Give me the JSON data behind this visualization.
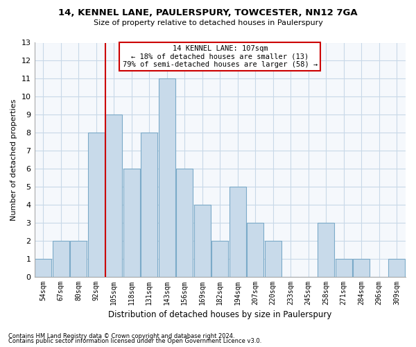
{
  "title_line1": "14, KENNEL LANE, PAULERSPURY, TOWCESTER, NN12 7GA",
  "title_line2": "Size of property relative to detached houses in Paulerspury",
  "xlabel": "Distribution of detached houses by size in Paulerspury",
  "ylabel": "Number of detached properties",
  "footnote1": "Contains HM Land Registry data © Crown copyright and database right 2024.",
  "footnote2": "Contains public sector information licensed under the Open Government Licence v3.0.",
  "bar_labels": [
    "54sqm",
    "67sqm",
    "80sqm",
    "92sqm",
    "105sqm",
    "118sqm",
    "131sqm",
    "143sqm",
    "156sqm",
    "169sqm",
    "182sqm",
    "194sqm",
    "207sqm",
    "220sqm",
    "233sqm",
    "245sqm",
    "258sqm",
    "271sqm",
    "284sqm",
    "296sqm",
    "309sqm"
  ],
  "bar_values": [
    1,
    2,
    2,
    8,
    9,
    6,
    8,
    11,
    6,
    4,
    2,
    5,
    3,
    2,
    0,
    0,
    3,
    1,
    1,
    0,
    1
  ],
  "bar_color": "#c8daea",
  "bar_edge_color": "#7baac8",
  "highlight_index": 4,
  "highlight_line_color": "#cc0000",
  "ylim": [
    0,
    13
  ],
  "yticks": [
    0,
    1,
    2,
    3,
    4,
    5,
    6,
    7,
    8,
    9,
    10,
    11,
    12,
    13
  ],
  "annotation_title": "14 KENNEL LANE: 107sqm",
  "annotation_line1": "← 18% of detached houses are smaller (13)",
  "annotation_line2": "79% of semi-detached houses are larger (58) →",
  "annotation_box_facecolor": "#ffffff",
  "annotation_box_edgecolor": "#cc0000",
  "grid_color": "#c8d8e8",
  "background_color": "#ffffff",
  "ax_background_color": "#f5f8fc"
}
